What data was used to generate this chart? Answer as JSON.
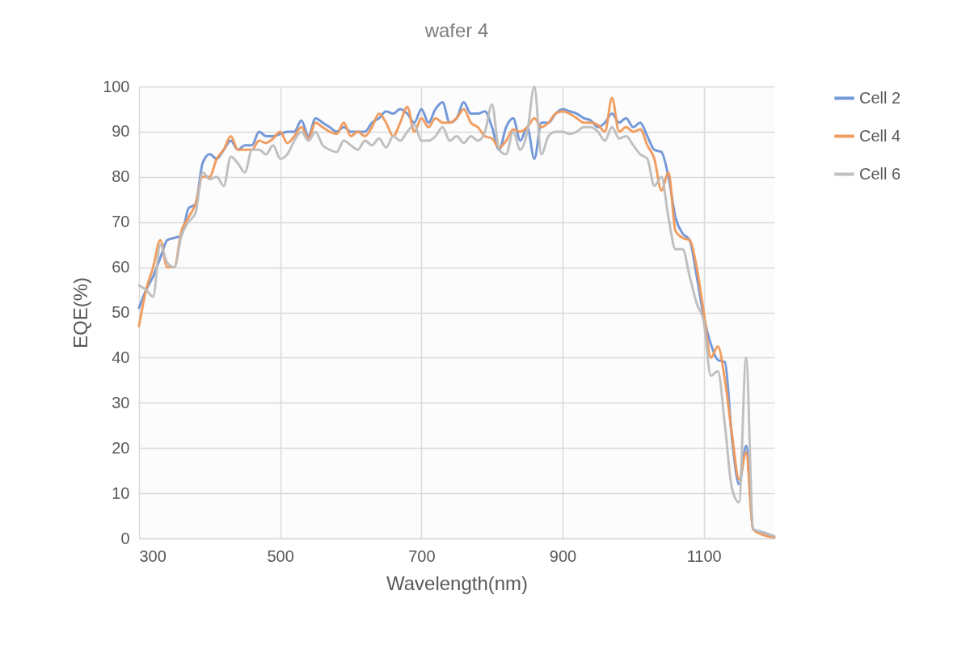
{
  "chart_data": {
    "type": "line",
    "title": "wafer 4",
    "xlabel": "Wavelength(nm)",
    "ylabel": "EQE(%)",
    "x": [
      300,
      310,
      320,
      330,
      340,
      350,
      360,
      370,
      380,
      390,
      400,
      410,
      420,
      430,
      440,
      450,
      460,
      470,
      480,
      490,
      500,
      510,
      520,
      530,
      540,
      550,
      560,
      570,
      580,
      590,
      600,
      610,
      620,
      630,
      640,
      650,
      660,
      670,
      680,
      690,
      700,
      710,
      720,
      730,
      740,
      750,
      760,
      770,
      780,
      790,
      800,
      810,
      820,
      830,
      840,
      850,
      860,
      870,
      880,
      890,
      900,
      910,
      920,
      930,
      940,
      950,
      960,
      970,
      980,
      990,
      1000,
      1010,
      1020,
      1030,
      1040,
      1050,
      1060,
      1070,
      1080,
      1090,
      1100,
      1110,
      1120,
      1130,
      1140,
      1150,
      1160,
      1170,
      1180,
      1190,
      1200
    ],
    "series": [
      {
        "name": "Cell 2",
        "color": "#6e93d6",
        "values": [
          51,
          55,
          58,
          62,
          66,
          66.5,
          67,
          73,
          74,
          83,
          85,
          84,
          86,
          88,
          86,
          87,
          87,
          90,
          89,
          89,
          89.5,
          90,
          90,
          92.5,
          89,
          93,
          92,
          91,
          90,
          91,
          90,
          90,
          90,
          92,
          93,
          94.5,
          94,
          95,
          94,
          92,
          95,
          92,
          95,
          96.5,
          92,
          93,
          96.5,
          94,
          94,
          94.5,
          91,
          86,
          91,
          93,
          88,
          91,
          84,
          92,
          92,
          94,
          95,
          94.5,
          94,
          93,
          92.5,
          91,
          92,
          94,
          92,
          93,
          91,
          92,
          89,
          86,
          85.5,
          80,
          71,
          67.5,
          66,
          58,
          49,
          43,
          39.5,
          39,
          22,
          12,
          20.5,
          2,
          1.5,
          1,
          0.3
        ]
      },
      {
        "name": "Cell 4",
        "color": "#f0995a",
        "values": [
          47,
          55,
          60,
          66,
          60,
          60,
          68,
          71,
          74,
          80,
          80,
          84,
          86,
          89,
          86,
          86,
          86,
          88,
          87.5,
          88.5,
          90,
          87.5,
          89,
          91,
          88.5,
          92,
          91,
          90,
          89.5,
          92,
          89,
          90,
          89,
          91,
          94,
          92,
          89,
          92,
          95.5,
          90,
          93,
          91,
          93,
          92,
          92,
          93,
          95,
          92,
          91,
          89,
          88.5,
          86.5,
          88,
          90.5,
          90,
          91,
          93,
          91,
          92,
          94,
          94.5,
          94,
          93,
          92,
          92,
          91.5,
          90,
          97.5,
          90,
          91,
          90,
          90.5,
          87,
          84,
          77,
          81,
          68,
          66.5,
          66,
          60,
          50,
          40,
          42.5,
          35,
          23,
          13,
          19,
          2,
          1,
          0.5,
          0.2
        ]
      },
      {
        "name": "Cell 6",
        "color": "#bdbdbd",
        "values": [
          56,
          55,
          53.5,
          65,
          61,
          60,
          67,
          70,
          72,
          81,
          79.5,
          80,
          78,
          84.5,
          83,
          81,
          86,
          86,
          85,
          87,
          84,
          85,
          88,
          90,
          88,
          90,
          87,
          86,
          85.5,
          88,
          87,
          86,
          88,
          87,
          88.5,
          86.5,
          89,
          88,
          90,
          91.5,
          88,
          88,
          89,
          91,
          88,
          89,
          87.5,
          89,
          88,
          90,
          96,
          86,
          85,
          90,
          86,
          90,
          100,
          85,
          89,
          90,
          90,
          89.5,
          90,
          91,
          91,
          90,
          88,
          91,
          88.5,
          89,
          87,
          85,
          84,
          78,
          80,
          71,
          64,
          64,
          58,
          52,
          48,
          36,
          37,
          25,
          11,
          8,
          40,
          2,
          1.5,
          1,
          0.5
        ]
      }
    ],
    "xlim": [
      300,
      1200
    ],
    "xticks": [
      300,
      500,
      700,
      900,
      1100
    ],
    "ylim": [
      0,
      100
    ],
    "yticks": [
      0,
      10,
      20,
      30,
      40,
      50,
      60,
      70,
      80,
      90,
      100
    ],
    "grid": true,
    "legend": "right"
  }
}
